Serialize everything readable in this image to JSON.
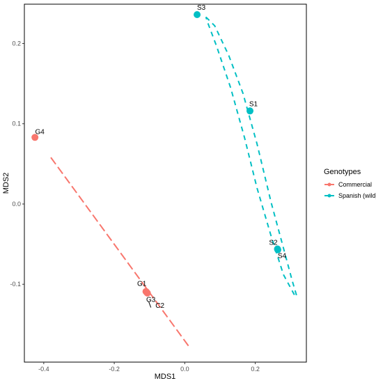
{
  "chart_data": {
    "type": "scatter",
    "title": "",
    "xlabel": "MDS1",
    "ylabel": "MDS2",
    "xlim": [
      -0.455,
      0.345
    ],
    "ylim": [
      -0.197,
      0.249
    ],
    "x_ticks": [
      -0.4,
      -0.2,
      0.0,
      0.2
    ],
    "x_tick_labels": [
      "-0.4",
      "-0.2",
      "0.0",
      "0.2"
    ],
    "y_ticks": [
      -0.1,
      0.0,
      0.1,
      0.2
    ],
    "y_tick_labels": [
      "-0.1",
      "0.0",
      "0.1",
      "0.2"
    ],
    "grid": false,
    "legend": {
      "title": "Genotypes",
      "position": "right",
      "entries": [
        "Commercial",
        "Spanish (wild)"
      ]
    },
    "series": [
      {
        "name": "Commercial",
        "color": "#F8766D",
        "points": [
          {
            "label": "G4",
            "x": -0.425,
            "y": 0.083
          },
          {
            "label": "G1",
            "x": -0.11,
            "y": -0.109
          },
          {
            "label": "G3",
            "x": -0.108,
            "y": -0.11
          },
          {
            "label": "C2",
            "x": -0.106,
            "y": -0.111
          }
        ],
        "ellipse_outline": [
          [
            -0.38,
            0.058
          ],
          [
            0.011,
            -0.177
          ]
        ]
      },
      {
        "name": "Spanish (wild)",
        "color": "#00BFC4",
        "points": [
          {
            "label": "S3",
            "x": 0.035,
            "y": 0.236
          },
          {
            "label": "S1",
            "x": 0.185,
            "y": 0.116
          },
          {
            "label": "S2",
            "x": 0.263,
            "y": -0.056
          },
          {
            "label": "S4",
            "x": 0.264,
            "y": -0.057
          }
        ],
        "ellipse_outline": [
          [
            0.06,
            0.233
          ],
          [
            0.085,
            0.222
          ],
          [
            0.125,
            0.185
          ],
          [
            0.165,
            0.138
          ],
          [
            0.205,
            0.075
          ],
          [
            0.245,
            0.002
          ],
          [
            0.28,
            -0.055
          ],
          [
            0.305,
            -0.096
          ],
          [
            0.318,
            -0.115
          ],
          [
            0.312,
            -0.114
          ],
          [
            0.28,
            -0.088
          ],
          [
            0.245,
            -0.04
          ],
          [
            0.205,
            0.02
          ],
          [
            0.17,
            0.082
          ],
          [
            0.13,
            0.145
          ],
          [
            0.09,
            0.197
          ],
          [
            0.065,
            0.226
          ],
          [
            0.06,
            0.233
          ]
        ]
      }
    ],
    "label_leaders": [
      {
        "from": [
          -0.102,
          -0.122
        ],
        "to": [
          -0.096,
          -0.129
        ]
      }
    ]
  }
}
